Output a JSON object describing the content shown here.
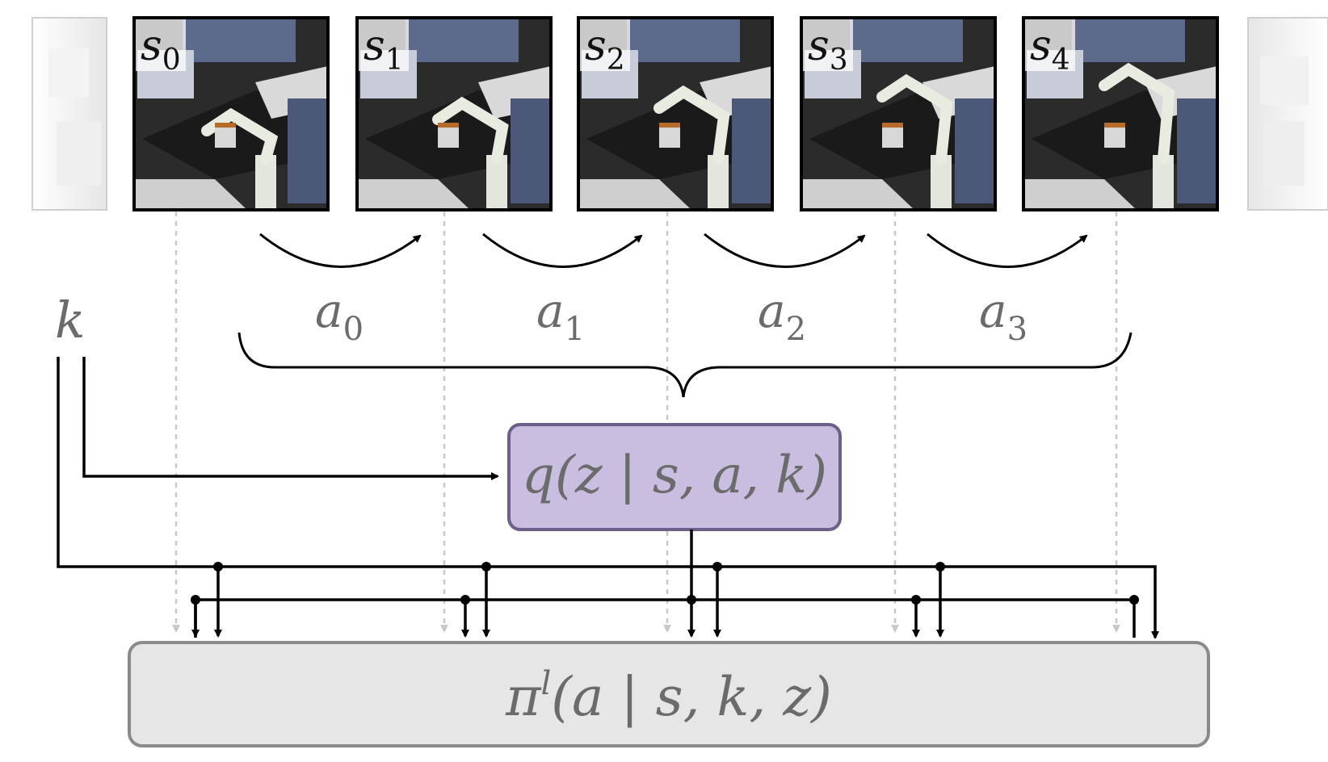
{
  "frames": [
    {
      "symbol": "s",
      "sub": "0"
    },
    {
      "symbol": "s",
      "sub": "1"
    },
    {
      "symbol": "s",
      "sub": "2"
    },
    {
      "symbol": "s",
      "sub": "3"
    },
    {
      "symbol": "s",
      "sub": "4"
    }
  ],
  "actions": [
    {
      "symbol": "a",
      "sub": "0"
    },
    {
      "symbol": "a",
      "sub": "1"
    },
    {
      "symbol": "a",
      "sub": "2"
    },
    {
      "symbol": "a",
      "sub": "3"
    }
  ],
  "skill": {
    "symbol": "k"
  },
  "encoder": {
    "text": "q(z | s, a, k)",
    "fill": "#c9bde0",
    "stroke": "#6e5f8a"
  },
  "policy": {
    "prefix": "π",
    "sup": "l",
    "rest": "(a | s, k, z)",
    "fill": "#e6e6e6",
    "stroke": "#8a8a8a"
  },
  "colors": {
    "line": "#000000",
    "dashed": "#c8c8c8",
    "frame_border": "#000000",
    "ghost_frame": "#e9e9e9",
    "math_text": "#6b6b6b"
  }
}
